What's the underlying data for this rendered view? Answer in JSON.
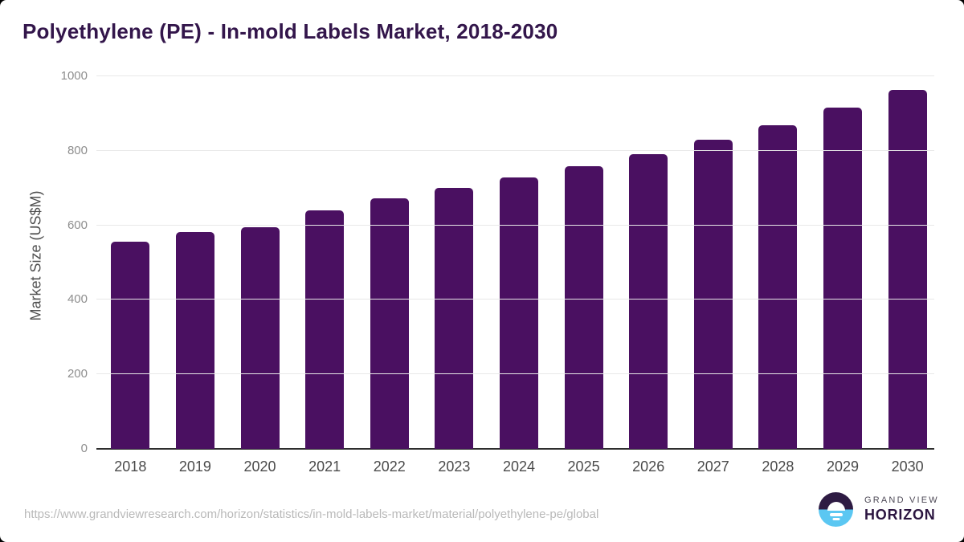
{
  "chart_data": {
    "type": "bar",
    "title": "Polyethylene (PE) - In-mold Labels Market, 2018-2030",
    "xlabel": "",
    "ylabel": "Market Size (US$M)",
    "categories": [
      "2018",
      "2019",
      "2020",
      "2021",
      "2022",
      "2023",
      "2024",
      "2025",
      "2026",
      "2027",
      "2028",
      "2029",
      "2030"
    ],
    "values": [
      555,
      582,
      594,
      641,
      672,
      700,
      728,
      759,
      792,
      829,
      869,
      915,
      964
    ],
    "ylim": [
      0,
      1000
    ],
    "yticks": [
      0,
      200,
      400,
      600,
      800,
      1000
    ],
    "grid": "horizontal",
    "legend_position": "none",
    "bar_color": "#4a1061"
  },
  "colors": {
    "title": "#33164b",
    "bar": "#4a1061",
    "gridline": "#e8e8e8",
    "axis_line": "#2e2e2e",
    "ytick_label": "#8e8e8e",
    "xtick_label": "#4a4a4a",
    "url_text": "#b9b9b9",
    "logo_purple": "#2e1b43",
    "logo_blue": "#5bc7f2"
  },
  "footer": {
    "source_url": "https://www.grandviewresearch.com/horizon/statistics/in-mold-labels-market/material/polyethylene-pe/global",
    "logo": {
      "top_text": "GRAND VIEW",
      "bottom_text": "HORIZON"
    }
  }
}
